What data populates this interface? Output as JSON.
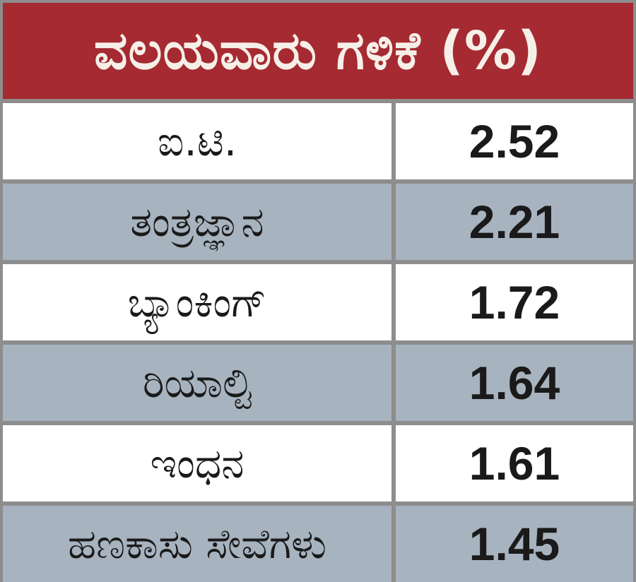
{
  "chart_data": {
    "type": "table",
    "title": "ವಲಯವಾರು ಗಳಿಕೆ (%)",
    "rows": [
      {
        "sector": "ಐ.ಟಿ.",
        "value": "2.52"
      },
      {
        "sector": "ತಂತ್ರಜ್ಞಾನ",
        "value": "2.21"
      },
      {
        "sector": "ಬ್ಯಾಂಕಿಂಗ್",
        "value": "1.72"
      },
      {
        "sector": "ರಿಯಾಲ್ಟಿ",
        "value": "1.64"
      },
      {
        "sector": "ಇಂಧನ",
        "value": "1.61"
      },
      {
        "sector": "ಹಣಕಾಸು ಸೇವೆಗಳು",
        "value": "1.45"
      }
    ]
  },
  "colors": {
    "header_bg": "#a52a31",
    "header_text": "#f6efe8",
    "row_alt_bg": "#a7b3bf",
    "row_bg": "#ffffff",
    "grid_lines": "#8d8d8d"
  }
}
